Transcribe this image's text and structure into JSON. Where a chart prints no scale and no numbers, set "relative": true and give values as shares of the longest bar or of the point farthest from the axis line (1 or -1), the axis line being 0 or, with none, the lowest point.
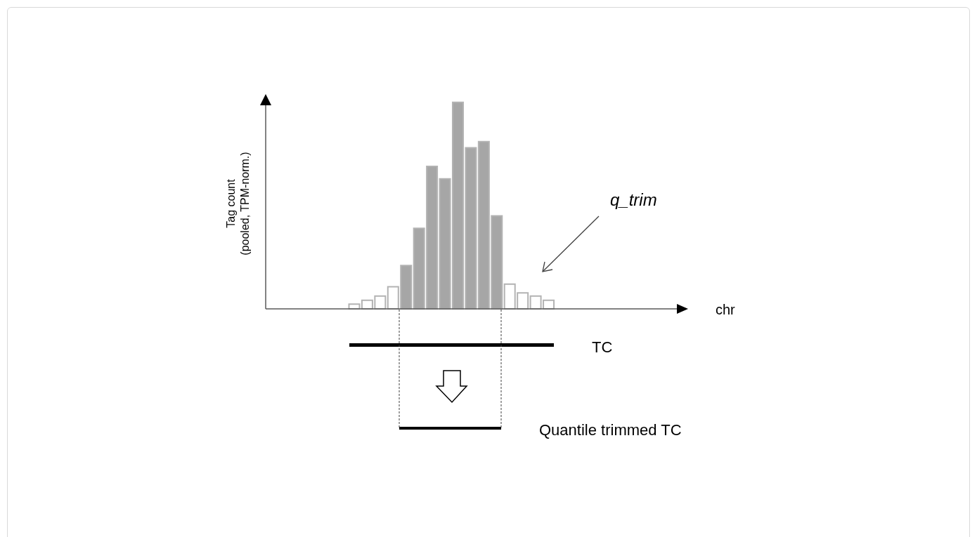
{
  "chart_data": {
    "type": "bar",
    "relative": true,
    "categories": [
      null,
      null,
      null,
      null,
      null,
      null,
      null,
      null,
      null,
      null,
      null,
      null,
      null,
      null,
      null,
      null
    ],
    "values": [
      0.023,
      0.042,
      0.062,
      0.107,
      0.21,
      0.39,
      0.69,
      0.63,
      1,
      0.78,
      0.81,
      0.45,
      0.12,
      0.077,
      0.062,
      0.042
    ],
    "colors": [
      "#ffffff",
      "#ffffff",
      "#ffffff",
      "#ffffff",
      "#a6a6a6",
      "#a6a6a6",
      "#a6a6a6",
      "#a6a6a6",
      "#a6a6a6",
      "#a6a6a6",
      "#a6a6a6",
      "#a6a6a6",
      "#ffffff",
      "#ffffff",
      "#ffffff",
      "#ffffff"
    ],
    "annotations": [
      "q_trim",
      "TC",
      "Quantile trimmed TC",
      "chr",
      "Tag count\n(pooled, TPM-norm.)"
    ]
  }
}
